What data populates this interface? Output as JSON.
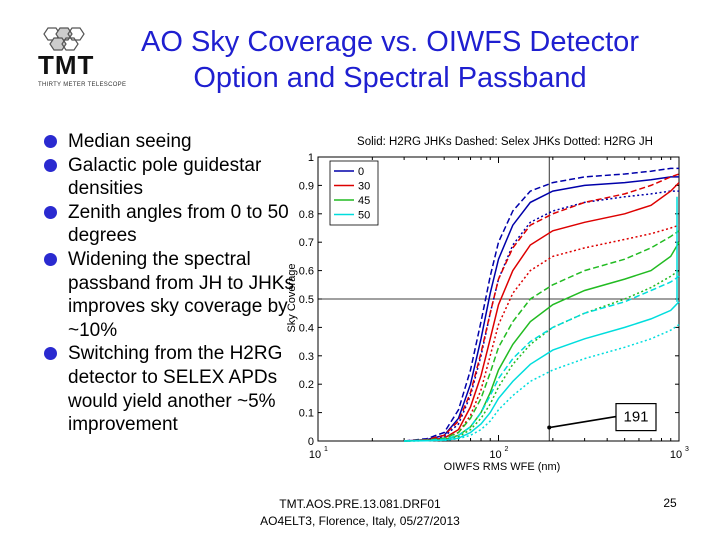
{
  "logo": {
    "text": "TMT",
    "subtext": "THIRTY METER TELESCOPE"
  },
  "title": "AO Sky Coverage vs. OIWFS Detector Option and Spectral Passband",
  "bullets": [
    "Median seeing",
    "Galactic pole guidestar densities",
    "Zenith angles from 0 to 50 degrees",
    "Widening the spectral passband from JH to JHKs improves sky coverage by ~10%",
    "Switching from the H2RG detector to SELEX APDs would yield another ~5% improvement"
  ],
  "footer": {
    "line1": "TMT.AOS.PRE.13.081.DRF01",
    "line2": "AO4ELT3, Florence, Italy, 05/27/2013"
  },
  "page_number": "25",
  "chart_data": {
    "type": "line",
    "title": "Solid: H2RG JHKs Dashed: Selex JHKs Dotted: H2RG JH",
    "xlabel": "OIWFS RMS WFE (nm)",
    "ylabel": "Sky Coverage",
    "xscale": "log",
    "xlim": [
      10,
      1000
    ],
    "ylim": [
      0,
      1
    ],
    "x_ticks": [
      "10",
      "10",
      "10"
    ],
    "x_tick_exponents": [
      "1",
      "2",
      "3"
    ],
    "y_ticks": [
      "0",
      "0.1",
      "0.2",
      "0.3",
      "0.4",
      "0.5",
      "0.6",
      "0.7",
      "0.8",
      "0.9",
      "1"
    ],
    "legend": {
      "placement": "top-left",
      "entries": [
        "0",
        "30",
        "45",
        "50"
      ]
    },
    "series_colors": {
      "0": "#0000aa",
      "30": "#dd0000",
      "45": "#22bb22",
      "50": "#00dddd"
    },
    "x": [
      30,
      40,
      50,
      60,
      70,
      80,
      90,
      100,
      120,
      150,
      200,
      300,
      500,
      700,
      900,
      1000
    ],
    "series": [
      {
        "name": "0",
        "style": "solid",
        "values": [
          0,
          0.005,
          0.02,
          0.08,
          0.2,
          0.36,
          0.52,
          0.64,
          0.76,
          0.84,
          0.88,
          0.9,
          0.91,
          0.92,
          0.93,
          0.93
        ]
      },
      {
        "name": "0",
        "style": "dashed",
        "values": [
          0,
          0.008,
          0.03,
          0.11,
          0.25,
          0.42,
          0.58,
          0.7,
          0.81,
          0.88,
          0.91,
          0.93,
          0.94,
          0.95,
          0.96,
          0.96
        ]
      },
      {
        "name": "0",
        "style": "dotted",
        "values": [
          0,
          0.004,
          0.015,
          0.06,
          0.16,
          0.3,
          0.45,
          0.57,
          0.69,
          0.77,
          0.81,
          0.84,
          0.86,
          0.87,
          0.88,
          0.88
        ]
      },
      {
        "name": "30",
        "style": "solid",
        "values": [
          0,
          0.003,
          0.01,
          0.04,
          0.12,
          0.23,
          0.36,
          0.48,
          0.6,
          0.69,
          0.74,
          0.77,
          0.8,
          0.83,
          0.88,
          0.91
        ]
      },
      {
        "name": "30",
        "style": "dashed",
        "values": [
          0,
          0.005,
          0.02,
          0.07,
          0.17,
          0.31,
          0.45,
          0.57,
          0.68,
          0.76,
          0.8,
          0.84,
          0.87,
          0.9,
          0.93,
          0.94
        ]
      },
      {
        "name": "30",
        "style": "dotted",
        "values": [
          0,
          0.002,
          0.008,
          0.03,
          0.09,
          0.18,
          0.3,
          0.41,
          0.52,
          0.6,
          0.65,
          0.68,
          0.71,
          0.73,
          0.75,
          0.76
        ]
      },
      {
        "name": "45",
        "style": "solid",
        "values": [
          0,
          0.002,
          0.005,
          0.02,
          0.05,
          0.1,
          0.17,
          0.25,
          0.34,
          0.42,
          0.48,
          0.53,
          0.57,
          0.6,
          0.65,
          0.7
        ]
      },
      {
        "name": "45",
        "style": "dashed",
        "values": [
          0,
          0.003,
          0.01,
          0.03,
          0.08,
          0.15,
          0.24,
          0.33,
          0.42,
          0.5,
          0.55,
          0.6,
          0.64,
          0.68,
          0.72,
          0.74
        ]
      },
      {
        "name": "45",
        "style": "dotted",
        "values": [
          0,
          0.001,
          0.004,
          0.015,
          0.04,
          0.08,
          0.13,
          0.19,
          0.27,
          0.34,
          0.4,
          0.45,
          0.5,
          0.54,
          0.58,
          0.6
        ]
      },
      {
        "name": "50",
        "style": "solid",
        "values": [
          0,
          0.001,
          0.003,
          0.01,
          0.03,
          0.06,
          0.1,
          0.15,
          0.21,
          0.27,
          0.32,
          0.36,
          0.4,
          0.43,
          0.46,
          0.49
        ]
      },
      {
        "name": "50",
        "style": "dashed",
        "values": [
          0,
          0.002,
          0.006,
          0.02,
          0.05,
          0.1,
          0.16,
          0.22,
          0.29,
          0.35,
          0.4,
          0.45,
          0.49,
          0.53,
          0.56,
          0.58
        ]
      },
      {
        "name": "50",
        "style": "dotted",
        "values": [
          0,
          0.001,
          0.002,
          0.008,
          0.02,
          0.04,
          0.07,
          0.11,
          0.16,
          0.21,
          0.25,
          0.29,
          0.33,
          0.36,
          0.39,
          0.41
        ]
      }
    ],
    "reference_lines": {
      "x": 191,
      "y": 0.5
    },
    "annotation": {
      "text": "191",
      "points_to_x": 191,
      "points_to_y": 0.065
    }
  }
}
